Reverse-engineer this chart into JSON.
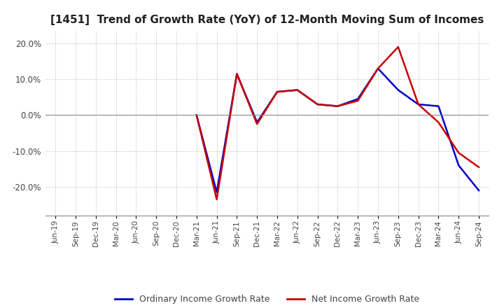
{
  "title": "[1451]  Trend of Growth Rate (YoY) of 12-Month Moving Sum of Incomes",
  "title_fontsize": 11,
  "legend_labels": [
    "Ordinary Income Growth Rate",
    "Net Income Growth Rate"
  ],
  "legend_colors": [
    "#0000cc",
    "#cc0000"
  ],
  "ylim": [
    -0.28,
    0.235
  ],
  "yticks": [
    -0.2,
    -0.1,
    0.0,
    0.1,
    0.2
  ],
  "x_labels": [
    "Jun-19",
    "Sep-19",
    "Dec-19",
    "Mar-20",
    "Jun-20",
    "Sep-20",
    "Dec-20",
    "Mar-21",
    "Jun-21",
    "Sep-21",
    "Dec-21",
    "Mar-22",
    "Jun-22",
    "Sep-22",
    "Dec-22",
    "Mar-23",
    "Jun-23",
    "Sep-23",
    "Dec-23",
    "Mar-24",
    "Jun-24",
    "Sep-24"
  ],
  "ordinary_income": [
    null,
    null,
    null,
    null,
    null,
    null,
    null,
    0.0,
    -0.215,
    0.115,
    -0.02,
    0.065,
    0.07,
    0.03,
    0.025,
    0.045,
    0.13,
    0.07,
    0.03,
    0.025,
    -0.14,
    -0.21
  ],
  "net_income": [
    null,
    null,
    null,
    null,
    null,
    null,
    null,
    0.0,
    -0.235,
    0.115,
    -0.025,
    0.065,
    0.07,
    0.03,
    0.025,
    0.04,
    0.13,
    0.19,
    0.03,
    -0.02,
    -0.105,
    -0.145
  ],
  "background_color": "#ffffff",
  "grid_color": "#aaaaaa",
  "grid_style": "dotted",
  "line_width": 1.8
}
